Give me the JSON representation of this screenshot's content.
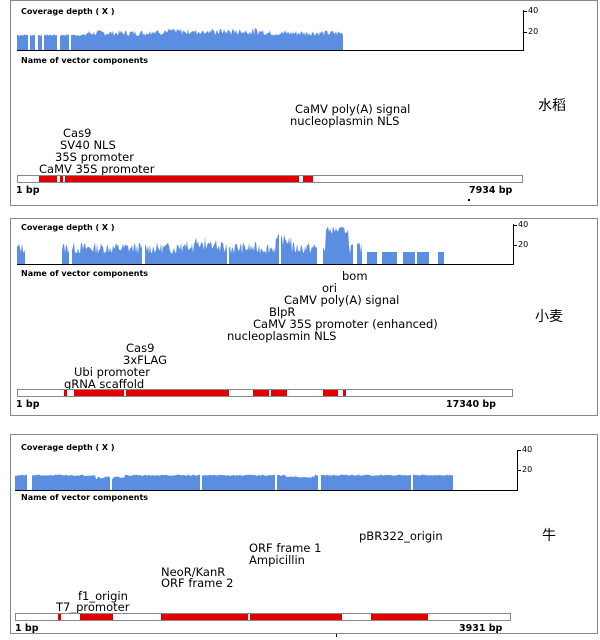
{
  "coverage_title": "Coverage depth ( X )",
  "components_title": "Name of vector components",
  "panels": [
    {
      "side_label": "水稻",
      "y_ticks": [
        "40",
        "20"
      ],
      "start_label": "1 bp",
      "end_label": "7934 bp",
      "components": [
        "CaMV poly(A) signal",
        "nucleoplasmin NLS",
        "Cas9",
        "SV40 NLS",
        "35S promoter",
        "CaMV 35S promoter"
      ]
    },
    {
      "side_label": "小麦",
      "y_ticks": [
        "40",
        "20"
      ],
      "start_label": "1 bp",
      "end_label": "17340 bp",
      "components": [
        "bom",
        "ori",
        "CaMV poly(A) signal",
        "BlpR",
        "CaMV 35S promoter (enhanced)",
        "nucleoplasmin NLS",
        "Cas9",
        "3xFLAG",
        "Ubi promoter",
        "gRNA scaffold"
      ]
    },
    {
      "side_label": "牛",
      "y_ticks": [
        "40",
        "20"
      ],
      "start_label": "1 bp",
      "end_label": "3931 bp",
      "components": [
        "pBR322_origin",
        "ORF frame 1",
        "Ampicillin",
        "NeoR/KanR",
        "ORF frame 2",
        "f1_origin",
        "T7_promoter"
      ]
    }
  ],
  "colors": {
    "coverage": "#5b8ee0",
    "component": "#e10000",
    "track_border": "#888888"
  }
}
